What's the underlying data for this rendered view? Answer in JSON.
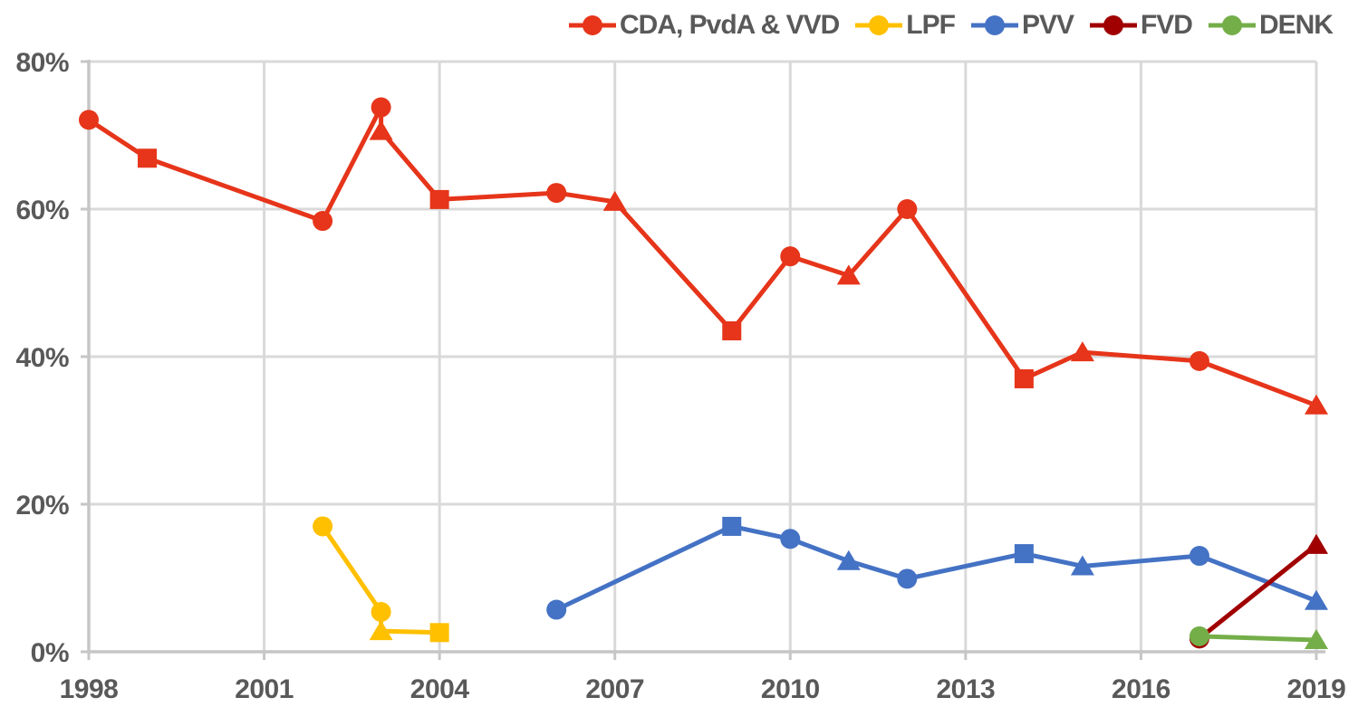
{
  "chart": {
    "title": "",
    "background_color": "#FFFFFF",
    "text_color": "#595959",
    "gridline_color": "#D9D9D9",
    "axis_line_color": "#C6C6C6",
    "grid": "on",
    "legend_position": "top"
  },
  "legend": {
    "items": [
      {
        "label": "CDA, PvdA & VVD",
        "color": "#E6351A"
      },
      {
        "label": "LPF",
        "color": "#FFC000"
      },
      {
        "label": "PVV",
        "color": "#4472C4"
      },
      {
        "label": "FVD",
        "color": "#A00000"
      },
      {
        "label": "DENK",
        "color": "#74AE49"
      }
    ]
  },
  "chart_data": {
    "type": "line",
    "title": "",
    "xlabel": "",
    "ylabel": "",
    "x_axis": {
      "min": 1998,
      "max": 2019,
      "tick_values": [
        1998,
        2001,
        2004,
        2007,
        2010,
        2013,
        2016,
        2019
      ],
      "tick_labels": [
        "1998",
        "2001",
        "2004",
        "2007",
        "2010",
        "2013",
        "2016",
        "2019"
      ]
    },
    "y_axis": {
      "min": 0,
      "max": 80,
      "unit": "%",
      "tick_values": [
        0,
        20,
        40,
        60,
        80
      ],
      "tick_labels": [
        "0%",
        "20%",
        "40%",
        "60%",
        "80%"
      ]
    },
    "marker_shapes_used": [
      "circle",
      "square",
      "triangle"
    ],
    "series": [
      {
        "name": "CDA, PvdA & VVD",
        "color": "#E6351A",
        "points": [
          {
            "year": 1998,
            "value": 72.1,
            "marker": "circle"
          },
          {
            "year": 1999,
            "value": 66.9,
            "marker": "square"
          },
          {
            "year": 2002,
            "value": 58.4,
            "marker": "circle"
          },
          {
            "year": 2003,
            "value": 73.8,
            "marker": "circle"
          },
          {
            "year": 2003,
            "value": 70.6,
            "marker": "triangle"
          },
          {
            "year": 2004,
            "value": 61.3,
            "marker": "square"
          },
          {
            "year": 2006,
            "value": 62.2,
            "marker": "circle"
          },
          {
            "year": 2007,
            "value": 61.0,
            "marker": "triangle"
          },
          {
            "year": 2009,
            "value": 43.5,
            "marker": "square"
          },
          {
            "year": 2010,
            "value": 53.6,
            "marker": "circle"
          },
          {
            "year": 2011,
            "value": 51.0,
            "marker": "triangle"
          },
          {
            "year": 2012,
            "value": 60.0,
            "marker": "circle"
          },
          {
            "year": 2014,
            "value": 37.0,
            "marker": "square"
          },
          {
            "year": 2015,
            "value": 40.6,
            "marker": "triangle"
          },
          {
            "year": 2017,
            "value": 39.4,
            "marker": "circle"
          },
          {
            "year": 2019,
            "value": 33.4,
            "marker": "triangle"
          }
        ]
      },
      {
        "name": "LPF",
        "color": "#FFC000",
        "points": [
          {
            "year": 2002,
            "value": 17.0,
            "marker": "circle"
          },
          {
            "year": 2003,
            "value": 5.4,
            "marker": "circle"
          },
          {
            "year": 2003,
            "value": 2.8,
            "marker": "triangle"
          },
          {
            "year": 2004,
            "value": 2.6,
            "marker": "square"
          }
        ]
      },
      {
        "name": "PVV",
        "color": "#4472C4",
        "points": [
          {
            "year": 2006,
            "value": 5.7,
            "marker": "circle"
          },
          {
            "year": 2009,
            "value": 17.0,
            "marker": "square"
          },
          {
            "year": 2010,
            "value": 15.3,
            "marker": "circle"
          },
          {
            "year": 2011,
            "value": 12.3,
            "marker": "triangle"
          },
          {
            "year": 2012,
            "value": 9.9,
            "marker": "circle"
          },
          {
            "year": 2014,
            "value": 13.3,
            "marker": "square"
          },
          {
            "year": 2015,
            "value": 11.6,
            "marker": "triangle"
          },
          {
            "year": 2017,
            "value": 13.0,
            "marker": "circle"
          },
          {
            "year": 2019,
            "value": 6.9,
            "marker": "triangle"
          }
        ]
      },
      {
        "name": "FVD",
        "color": "#A00000",
        "points": [
          {
            "year": 2017,
            "value": 1.8,
            "marker": "circle"
          },
          {
            "year": 2019,
            "value": 14.5,
            "marker": "triangle"
          }
        ]
      },
      {
        "name": "DENK",
        "color": "#74AE49",
        "points": [
          {
            "year": 2017,
            "value": 2.1,
            "marker": "circle"
          },
          {
            "year": 2019,
            "value": 1.6,
            "marker": "triangle"
          }
        ]
      }
    ]
  }
}
